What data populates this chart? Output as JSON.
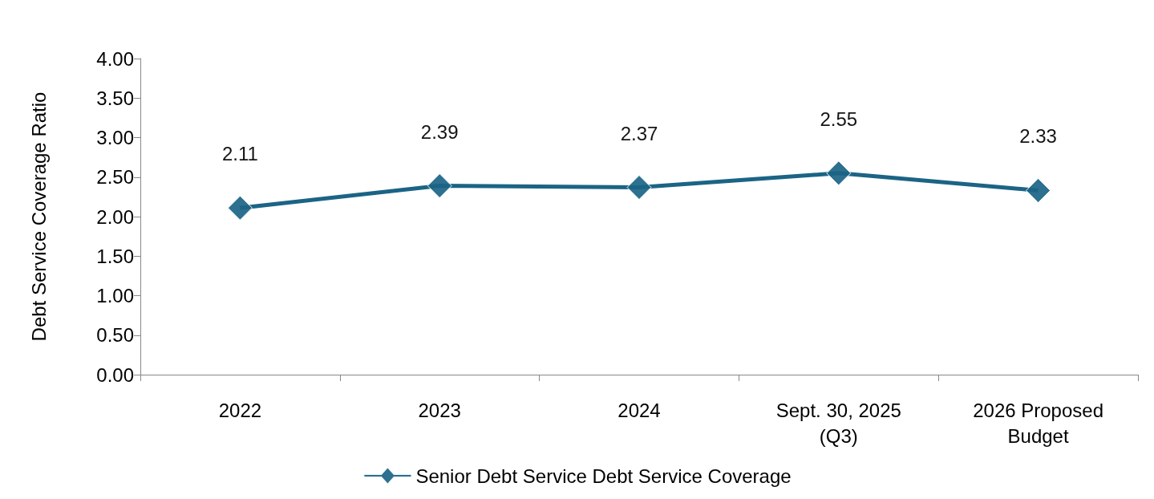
{
  "chart_data": {
    "type": "line",
    "ylabel": "Debt Service Coverage Ratio",
    "categories": [
      "2022",
      "2023",
      "2024",
      "Sept. 30, 2025\n(Q3)",
      "2026 Proposed\nBudget"
    ],
    "series": [
      {
        "name": "Senior Debt Service Debt Service Coverage",
        "color": "#1b6485",
        "values": [
          2.11,
          2.39,
          2.37,
          2.55,
          2.33
        ]
      }
    ],
    "ylim": [
      0,
      4
    ],
    "yticks": [
      {
        "value": 0,
        "label": "0.00"
      },
      {
        "value": 0.5,
        "label": "0.50"
      },
      {
        "value": 1,
        "label": "1.00"
      },
      {
        "value": 1.5,
        "label": "1.50"
      },
      {
        "value": 2,
        "label": "2.00"
      },
      {
        "value": 2.5,
        "label": "2.50"
      },
      {
        "value": 3,
        "label": "3.00"
      },
      {
        "value": 3.5,
        "label": "3.50"
      },
      {
        "value": 4,
        "label": "4.00"
      }
    ],
    "data_labels": true,
    "marker": "diamond",
    "legend": "bottom",
    "grid": false
  }
}
